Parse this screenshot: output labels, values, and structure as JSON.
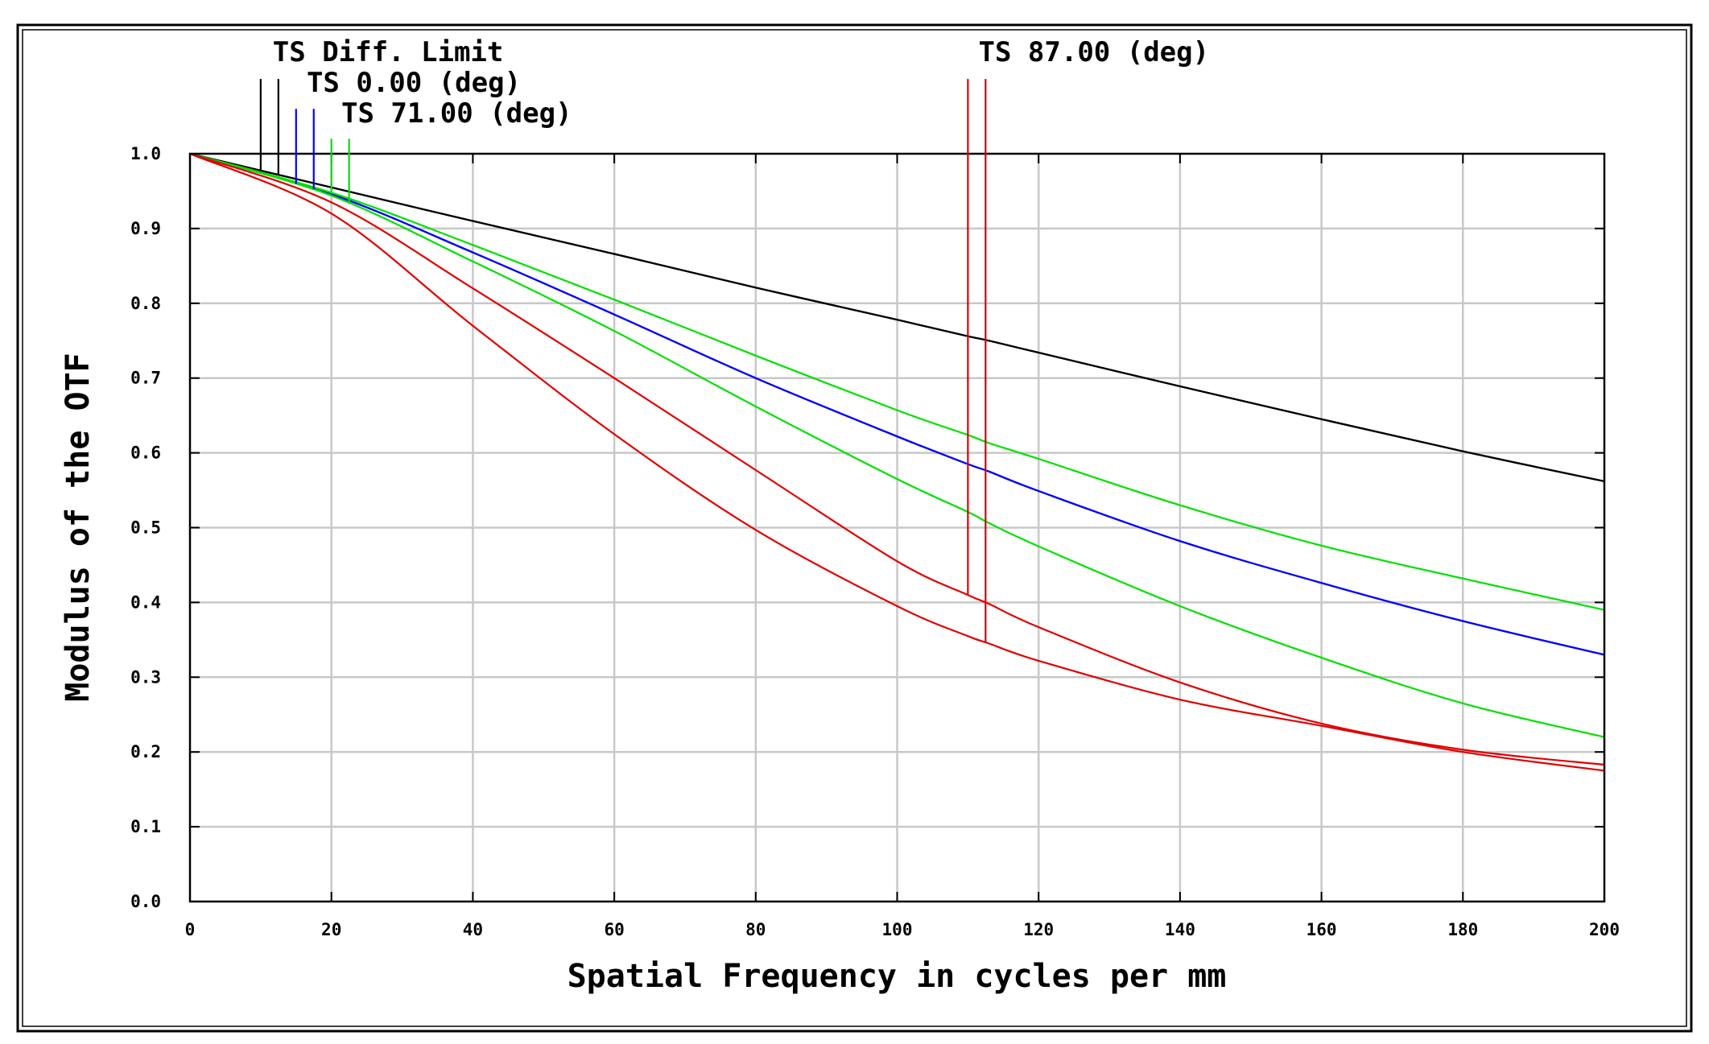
{
  "chart_data": {
    "type": "line",
    "title": "",
    "xlabel": "Spatial Frequency in cycles per mm",
    "ylabel": "Modulus of the OTF",
    "xlim": [
      0,
      200
    ],
    "ylim": [
      0,
      1.0
    ],
    "x_ticks": [
      "0",
      "20",
      "40",
      "60",
      "80",
      "100",
      "120",
      "140",
      "160",
      "180",
      "200"
    ],
    "y_ticks": [
      "0.0",
      "0.1",
      "0.2",
      "0.3",
      "0.4",
      "0.5",
      "0.6",
      "0.7",
      "0.8",
      "0.9",
      "1.0"
    ],
    "grid": true,
    "x": [
      0,
      20,
      40,
      60,
      80,
      100,
      110,
      113,
      120,
      140,
      160,
      180,
      200
    ],
    "series": [
      {
        "name": "TS Diff. Limit T",
        "group": "TS Diff. Limit",
        "color": "#000000",
        "marker_x": 10,
        "marker_y_top": 1.1,
        "values": [
          1.0,
          0.955,
          0.91,
          0.866,
          0.821,
          0.778,
          0.756,
          0.75,
          0.734,
          0.689,
          0.645,
          0.602,
          0.562
        ]
      },
      {
        "name": "TS Diff. Limit S",
        "group": "TS Diff. Limit",
        "color": "#000000",
        "marker_x": 12.5,
        "marker_y_top": 1.1,
        "values": [
          1.0,
          0.955,
          0.91,
          0.866,
          0.821,
          0.778,
          0.756,
          0.75,
          0.734,
          0.689,
          0.645,
          0.602,
          0.562
        ]
      },
      {
        "name": "TS 0.00 (deg) T",
        "group": "TS 0.00 (deg)",
        "color": "#0000ff",
        "marker_x": 15,
        "marker_y_top": 1.06,
        "values": [
          1.0,
          0.946,
          0.868,
          0.785,
          0.7,
          0.622,
          0.585,
          0.575,
          0.549,
          0.482,
          0.426,
          0.375,
          0.33
        ]
      },
      {
        "name": "TS 0.00 (deg) S",
        "group": "TS 0.00 (deg)",
        "color": "#0000ff",
        "marker_x": 17.5,
        "marker_y_top": 1.06,
        "values": [
          1.0,
          0.946,
          0.868,
          0.785,
          0.7,
          0.622,
          0.585,
          0.575,
          0.549,
          0.482,
          0.426,
          0.375,
          0.33
        ]
      },
      {
        "name": "TS 71.00 (deg) T",
        "group": "TS 71.00 (deg)",
        "color": "#00e000",
        "marker_x": 20,
        "marker_y_top": 1.02,
        "values": [
          1.0,
          0.948,
          0.878,
          0.805,
          0.73,
          0.657,
          0.624,
          0.613,
          0.592,
          0.53,
          0.476,
          0.432,
          0.39
        ]
      },
      {
        "name": "TS 71.00 (deg) S",
        "group": "TS 71.00 (deg)",
        "color": "#00e000",
        "marker_x": 22.5,
        "marker_y_top": 1.02,
        "values": [
          1.0,
          0.944,
          0.856,
          0.763,
          0.662,
          0.565,
          0.521,
          0.506,
          0.475,
          0.395,
          0.326,
          0.265,
          0.22
        ]
      },
      {
        "name": "TS 87.00 (deg) T",
        "group": "TS 87.00 (deg)",
        "color": "#e00000",
        "marker_x": 110,
        "marker_y_top": 1.1,
        "values": [
          1.0,
          0.935,
          0.82,
          0.7,
          0.577,
          0.455,
          0.41,
          0.398,
          0.367,
          0.293,
          0.238,
          0.203,
          0.183
        ]
      },
      {
        "name": "TS 87.00 (deg) S",
        "group": "TS 87.00 (deg)",
        "color": "#e00000",
        "marker_x": 112.5,
        "marker_y_top": 1.1,
        "values": [
          1.0,
          0.92,
          0.77,
          0.625,
          0.497,
          0.395,
          0.355,
          0.345,
          0.322,
          0.27,
          0.235,
          0.2,
          0.175
        ]
      }
    ],
    "legend": [
      {
        "label": "TS Diff. Limit",
        "color": "#000000"
      },
      {
        "label": "TS 0.00 (deg)",
        "color": "#0000ff"
      },
      {
        "label": "TS 71.00 (deg)",
        "color": "#00e000"
      },
      {
        "label": "TS 87.00 (deg)",
        "color": "#e00000"
      }
    ]
  }
}
